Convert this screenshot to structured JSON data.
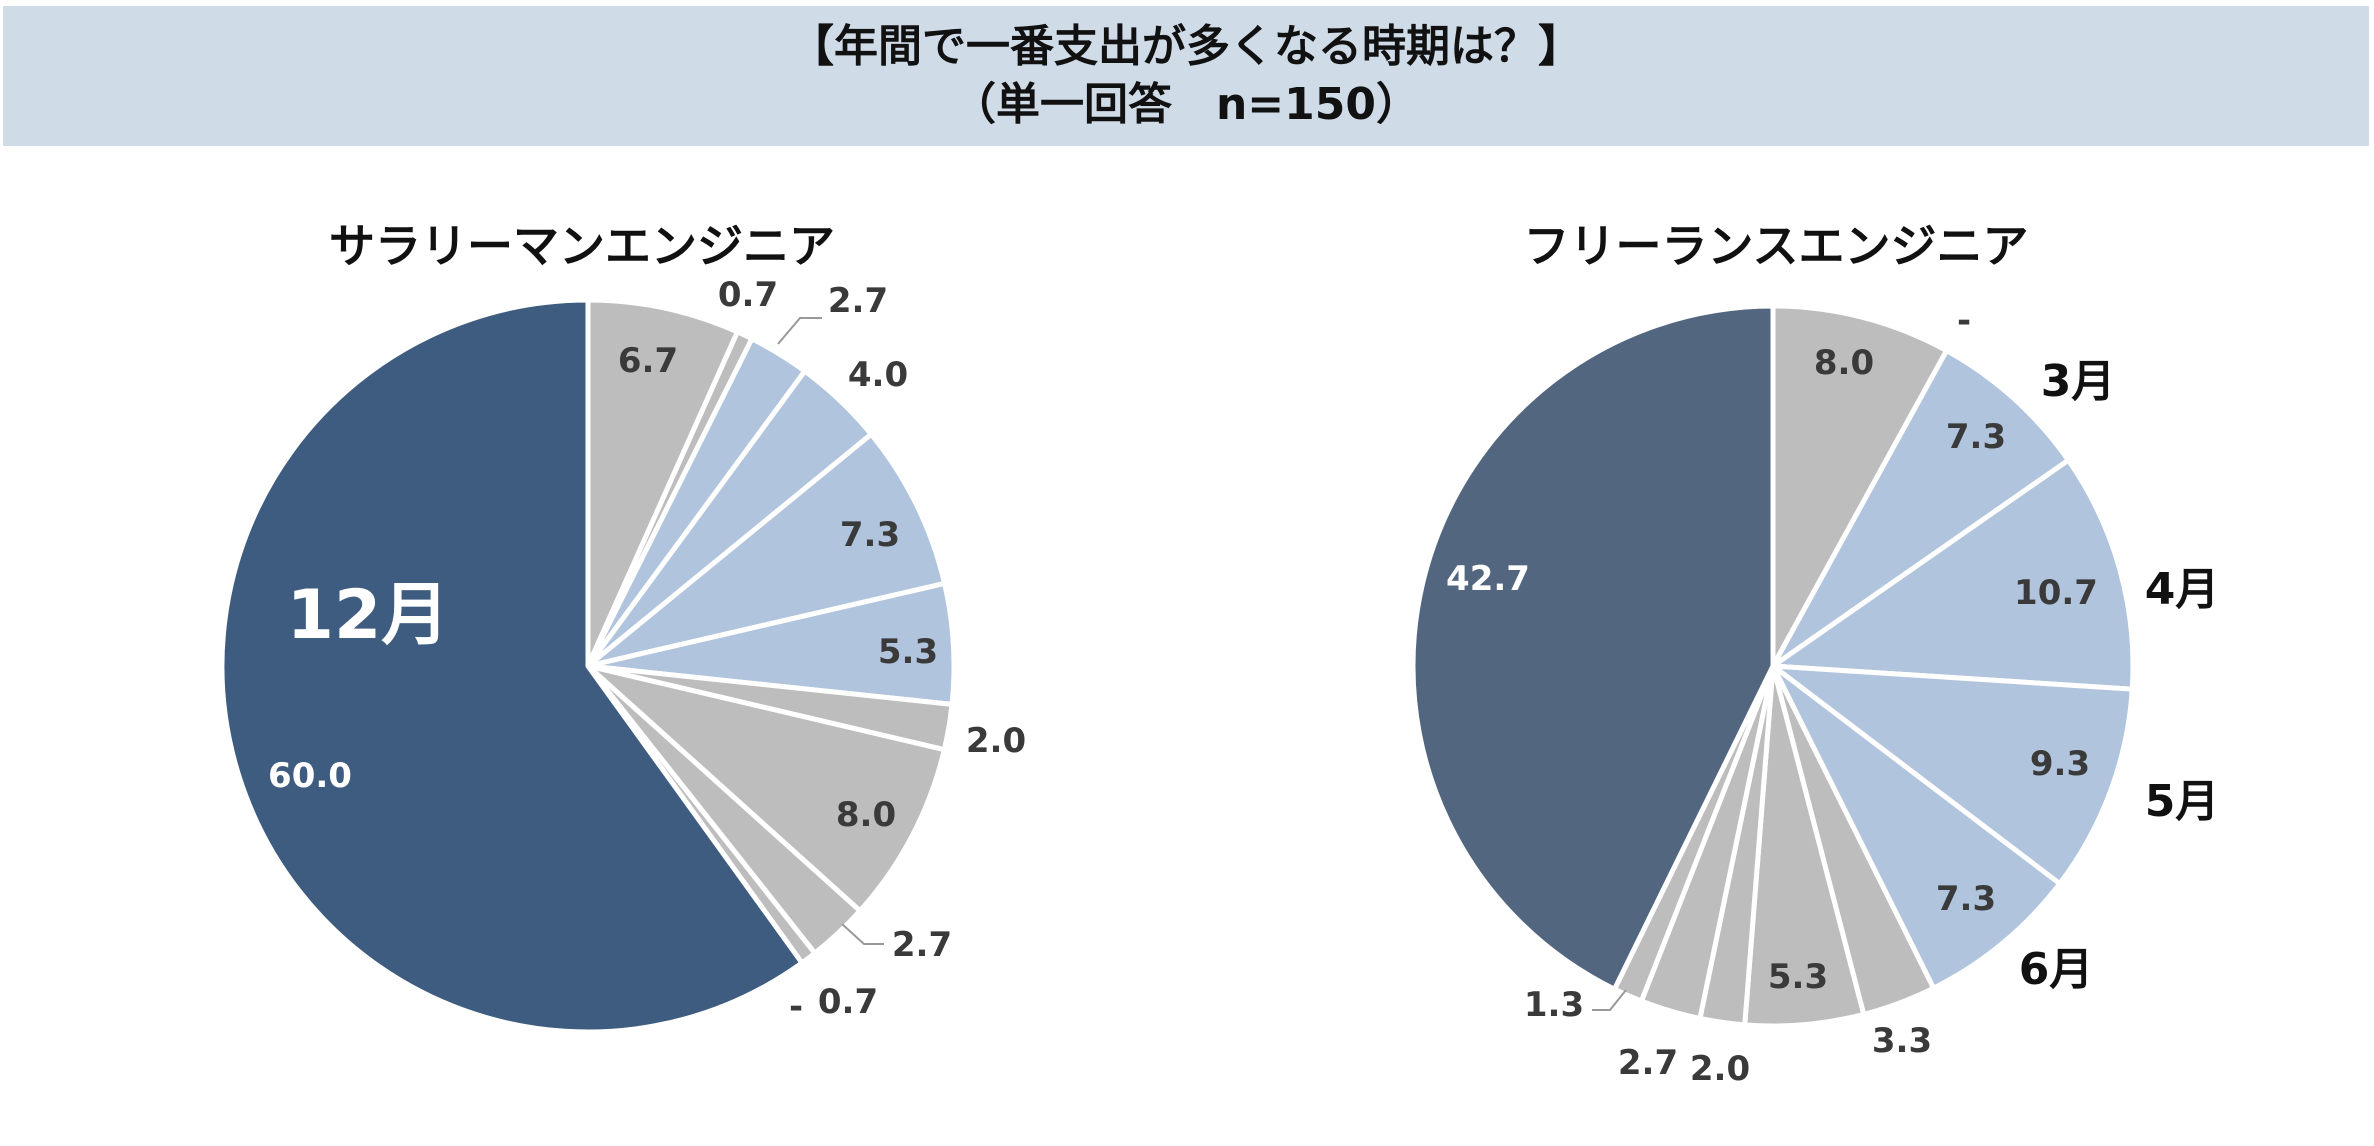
{
  "header": {
    "title": "【年間で一番支出が多くなる時期は？】",
    "subtitle": "（単一回答　n=150）"
  },
  "colors": {
    "gray": "#bdbdbd",
    "light_blue": "#b1c4dd",
    "dark_blue_1": "#3e5c80",
    "dark_blue_2": "#536680",
    "header_bg": "#d0dbe8"
  },
  "chart_data": [
    {
      "type": "pie",
      "title": "サラリーマンエンジニア",
      "values": [
        6.7,
        0.7,
        2.7,
        4.0,
        7.3,
        5.3,
        2.0,
        8.0,
        2.7,
        0.7,
        60.0
      ],
      "labels": [
        "6.7",
        "0.7",
        "2.7",
        "4.0",
        "7.3",
        "5.3",
        "2.0",
        "8.0",
        "2.7",
        "0.7",
        "60.0"
      ],
      "colors": [
        "#bdbdbd",
        "#bdbdbd",
        "#b1c4dd",
        "#b1c4dd",
        "#b1c4dd",
        "#b1c4dd",
        "#bdbdbd",
        "#bdbdbd",
        "#bdbdbd",
        "#bdbdbd",
        "#3e5c80"
      ],
      "annotation": "12月",
      "extra_marks": [
        "-"
      ]
    },
    {
      "type": "pie",
      "title": "フリーランスエンジニア",
      "values": [
        8.0,
        0,
        7.3,
        10.7,
        9.3,
        7.3,
        3.3,
        5.3,
        2.0,
        2.7,
        1.3,
        42.7
      ],
      "labels": [
        "8.0",
        "-",
        "7.3",
        "10.7",
        "9.3",
        "7.3",
        "3.3",
        "5.3",
        "2.0",
        "2.7",
        "1.3",
        "42.7"
      ],
      "colors": [
        "#bdbdbd",
        "#bdbdbd",
        "#b1c4dd",
        "#b1c4dd",
        "#b1c4dd",
        "#b1c4dd",
        "#bdbdbd",
        "#bdbdbd",
        "#bdbdbd",
        "#bdbdbd",
        "#bdbdbd",
        "#536680"
      ],
      "month_labels": [
        "3月",
        "4月",
        "5月",
        "6月"
      ]
    }
  ]
}
